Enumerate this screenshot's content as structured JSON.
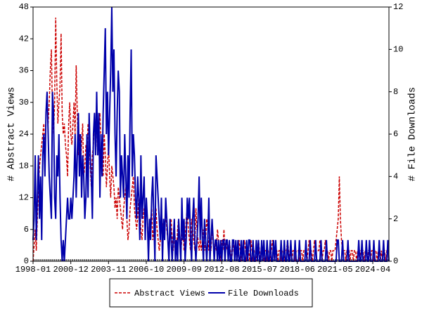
{
  "chart_data": {
    "type": "line",
    "y_label": "# Abstract Views",
    "y2_label": "# File Downloads",
    "categories": [
      "1998-01",
      "1998-02",
      "1998-03",
      "1998-04",
      "1998-05",
      "1998-06",
      "1998-07",
      "1998-08",
      "1998-09",
      "1998-10",
      "1998-11",
      "1998-12",
      "1999-01",
      "1999-02",
      "1999-03",
      "1999-04",
      "1999-05",
      "1999-06",
      "1999-07",
      "1999-08",
      "1999-09",
      "1999-10",
      "1999-11",
      "1999-12",
      "2000-01",
      "2000-02",
      "2000-03",
      "2000-04",
      "2000-05",
      "2000-06",
      "2000-07",
      "2000-08",
      "2000-09",
      "2000-10",
      "2000-11",
      "2000-12",
      "2001-01",
      "2001-02",
      "2001-03",
      "2001-04",
      "2001-05",
      "2001-06",
      "2001-07",
      "2001-08",
      "2001-09",
      "2001-10",
      "2001-11",
      "2001-12",
      "2002-01",
      "2002-02",
      "2002-03",
      "2002-04",
      "2002-05",
      "2002-06",
      "2002-07",
      "2002-08",
      "2002-09",
      "2002-10",
      "2002-11",
      "2002-12",
      "2003-01",
      "2003-02",
      "2003-03",
      "2003-04",
      "2003-05",
      "2003-06",
      "2003-07",
      "2003-08",
      "2003-09",
      "2003-10",
      "2003-11",
      "2003-12",
      "2004-01",
      "2004-02",
      "2004-03",
      "2004-04",
      "2004-05",
      "2004-06",
      "2004-07",
      "2004-08",
      "2004-09",
      "2004-10",
      "2004-11",
      "2004-12",
      "2005-01",
      "2005-02",
      "2005-03",
      "2005-04",
      "2005-05",
      "2005-06",
      "2005-07",
      "2005-08",
      "2005-09",
      "2005-10",
      "2005-11",
      "2005-12",
      "2006-01",
      "2006-02",
      "2006-03",
      "2006-04",
      "2006-05",
      "2006-06",
      "2006-07",
      "2006-08",
      "2006-09",
      "2006-10",
      "2006-11",
      "2006-12",
      "2007-01",
      "2007-02",
      "2007-03",
      "2007-04",
      "2007-05",
      "2007-06",
      "2007-07",
      "2007-08",
      "2007-09",
      "2007-10",
      "2007-11",
      "2007-12",
      "2008-01",
      "2008-02",
      "2008-03",
      "2008-04",
      "2008-05",
      "2008-06",
      "2008-07",
      "2008-08",
      "2008-09",
      "2008-10",
      "2008-11",
      "2008-12",
      "2009-01",
      "2009-02",
      "2009-03",
      "2009-04",
      "2009-05",
      "2009-06",
      "2009-07",
      "2009-08",
      "2009-09",
      "2009-10",
      "2009-11",
      "2009-12",
      "2010-01",
      "2010-02",
      "2010-03",
      "2010-04",
      "2010-05",
      "2010-06",
      "2010-07",
      "2010-08",
      "2010-09",
      "2010-10",
      "2010-11",
      "2010-12",
      "2011-01",
      "2011-02",
      "2011-03",
      "2011-04",
      "2011-05",
      "2011-06",
      "2011-07",
      "2011-08",
      "2011-09",
      "2011-10",
      "2011-11",
      "2011-12",
      "2012-01",
      "2012-02",
      "2012-03",
      "2012-04",
      "2012-05",
      "2012-06",
      "2012-07",
      "2012-08",
      "2012-09",
      "2012-10",
      "2012-11",
      "2012-12",
      "2013-01",
      "2013-02",
      "2013-03",
      "2013-04",
      "2013-05",
      "2013-06",
      "2013-07",
      "2013-08",
      "2013-09",
      "2013-10",
      "2013-11",
      "2013-12",
      "2014-01",
      "2014-02",
      "2014-03",
      "2014-04",
      "2014-05",
      "2014-06",
      "2014-07",
      "2014-08",
      "2014-09",
      "2014-10",
      "2014-11",
      "2014-12",
      "2015-01",
      "2015-02",
      "2015-03",
      "2015-04",
      "2015-05",
      "2015-06",
      "2015-07",
      "2015-08",
      "2015-09",
      "2015-10",
      "2015-11",
      "2015-12",
      "2016-01",
      "2016-02",
      "2016-03",
      "2016-04",
      "2016-05",
      "2016-06",
      "2016-07",
      "2016-08",
      "2016-09",
      "2016-10",
      "2016-11",
      "2016-12",
      "2017-01",
      "2017-02",
      "2017-03",
      "2017-04",
      "2017-05",
      "2017-06",
      "2017-07",
      "2017-08",
      "2017-09",
      "2017-10",
      "2017-11",
      "2017-12",
      "2018-01",
      "2018-02",
      "2018-03",
      "2018-04",
      "2018-05",
      "2018-06",
      "2018-07",
      "2018-08",
      "2018-09",
      "2018-10",
      "2018-11",
      "2018-12",
      "2019-01",
      "2019-02",
      "2019-03",
      "2019-04",
      "2019-05",
      "2019-06",
      "2019-07",
      "2019-08",
      "2019-09",
      "2019-10",
      "2019-11",
      "2019-12",
      "2020-01",
      "2020-02",
      "2020-03",
      "2020-04",
      "2020-05",
      "2020-06",
      "2020-07",
      "2020-08",
      "2020-09",
      "2020-10",
      "2020-11",
      "2020-12",
      "2021-01",
      "2021-02",
      "2021-03",
      "2021-04",
      "2021-05",
      "2021-06",
      "2021-07",
      "2021-08",
      "2021-09",
      "2021-10",
      "2021-11",
      "2021-12",
      "2022-01",
      "2022-02",
      "2022-03",
      "2022-04",
      "2022-05",
      "2022-06",
      "2022-07",
      "2022-08",
      "2022-09",
      "2022-10",
      "2022-11",
      "2022-12",
      "2023-01",
      "2023-02",
      "2023-03",
      "2023-04",
      "2023-05",
      "2023-06",
      "2023-07",
      "2023-08",
      "2023-09",
      "2023-10",
      "2023-11",
      "2023-12",
      "2024-01",
      "2024-02",
      "2024-03",
      "2024-04",
      "2024-05",
      "2024-06",
      "2024-07",
      "2024-08",
      "2024-09",
      "2024-10",
      "2024-11",
      "2024-12",
      "2025-01",
      "2025-02",
      "2025-03",
      "2025-04",
      "2025-05",
      "2025-06",
      "2025-07"
    ],
    "xticks": [
      "1998-01",
      "2000-12",
      "2003-11",
      "2006-10",
      "2009-09",
      "2012-08",
      "2015-07",
      "2018-06",
      "2021-05",
      "2024-04"
    ],
    "ylim": [
      0,
      48
    ],
    "yticks": [
      0,
      6,
      12,
      18,
      24,
      30,
      36,
      42,
      48
    ],
    "y2lim": [
      0,
      12
    ],
    "y2ticks": [
      0,
      2,
      4,
      6,
      8,
      10,
      12
    ],
    "series": [
      {
        "name": "Abstract Views",
        "color": "#cc0000",
        "dashed": true,
        "values": [
          0,
          3,
          6,
          2,
          8,
          14,
          18,
          20,
          22,
          24,
          26,
          20,
          28,
          32,
          26,
          30,
          36,
          40,
          28,
          24,
          30,
          46,
          34,
          26,
          30,
          33,
          43,
          28,
          24,
          26,
          22,
          20,
          16,
          26,
          30,
          24,
          22,
          26,
          30,
          24,
          37,
          28,
          20,
          24,
          18,
          22,
          26,
          16,
          18,
          22,
          20,
          26,
          24,
          18,
          14,
          20,
          22,
          28,
          24,
          26,
          20,
          24,
          28,
          22,
          18,
          16,
          24,
          20,
          14,
          18,
          22,
          16,
          12,
          18,
          16,
          14,
          10,
          12,
          8,
          14,
          12,
          10,
          8,
          6,
          10,
          12,
          14,
          8,
          4,
          6,
          10,
          12,
          14,
          16,
          10,
          8,
          6,
          8,
          12,
          10,
          6,
          4,
          8,
          10,
          6,
          12,
          8,
          4,
          6,
          8,
          10,
          4,
          6,
          8,
          10,
          6,
          4,
          2,
          4,
          8,
          6,
          8,
          4,
          10,
          6,
          4,
          2,
          6,
          8,
          4,
          2,
          6,
          4,
          2,
          6,
          8,
          4,
          2,
          4,
          6,
          2,
          4,
          8,
          10,
          6,
          4,
          2,
          8,
          6,
          4,
          2,
          10,
          6,
          4,
          2,
          4,
          2,
          4,
          6,
          2,
          4,
          8,
          6,
          2,
          4,
          2,
          6,
          4,
          2,
          4,
          2,
          6,
          4,
          2,
          0,
          4,
          2,
          6,
          2,
          4,
          2,
          2,
          4,
          2,
          0,
          2,
          4,
          2,
          2,
          0,
          2,
          4,
          2,
          0,
          2,
          2,
          4,
          2,
          0,
          2,
          2,
          0,
          4,
          2,
          0,
          2,
          2,
          0,
          2,
          4,
          2,
          0,
          2,
          2,
          0,
          2,
          2,
          0,
          2,
          2,
          0,
          2,
          4,
          2,
          0,
          2,
          2,
          0,
          2,
          2,
          0,
          2,
          2,
          0,
          2,
          2,
          4,
          2,
          0,
          2,
          0,
          2,
          2,
          0,
          2,
          2,
          2,
          0,
          2,
          2,
          0,
          2,
          2,
          2,
          0,
          2,
          4,
          2,
          2,
          0,
          2,
          4,
          2,
          2,
          2,
          2,
          4,
          2,
          0,
          2,
          2,
          4,
          2,
          2,
          0,
          2,
          2,
          0,
          2,
          2,
          2,
          4,
          6,
          8,
          16,
          8,
          4,
          2,
          2,
          2,
          0,
          2,
          2,
          2,
          0,
          2,
          2,
          0,
          2,
          2,
          0,
          2,
          2,
          0,
          2,
          2,
          2,
          0,
          2,
          2,
          0,
          2,
          2,
          0,
          2,
          2,
          0,
          2,
          2,
          0,
          2,
          2,
          0,
          2,
          0,
          2,
          2,
          0,
          2,
          2,
          0
        ]
      },
      {
        "name": "File Downloads",
        "color": "#0000aa",
        "axis": "y2",
        "values": [
          1,
          2,
          5,
          1,
          3,
          5,
          2,
          4,
          1,
          5,
          6,
          4,
          7,
          8,
          6,
          4,
          3,
          2,
          8,
          7,
          3,
          2,
          5,
          4,
          6,
          3,
          1,
          0,
          1,
          0,
          1,
          2,
          3,
          2,
          2,
          3,
          2,
          3,
          4,
          6,
          3,
          5,
          7,
          4,
          6,
          3,
          5,
          4,
          2,
          3,
          6,
          3,
          7,
          5,
          4,
          2,
          6,
          7,
          5,
          8,
          5,
          7,
          3,
          6,
          4,
          7,
          9,
          11,
          6,
          8,
          5,
          7,
          9,
          12,
          8,
          10,
          6,
          4,
          7,
          9,
          8,
          3,
          5,
          4,
          3,
          6,
          4,
          2,
          5,
          3,
          7,
          10,
          4,
          6,
          5,
          3,
          2,
          4,
          3,
          1,
          5,
          2,
          3,
          4,
          1,
          3,
          2,
          0,
          2,
          1,
          3,
          4,
          2,
          0,
          5,
          4,
          3,
          2,
          1,
          3,
          0,
          2,
          1,
          3,
          2,
          1,
          0,
          2,
          1,
          0,
          1,
          2,
          0,
          1,
          0,
          2,
          1,
          0,
          3,
          1,
          2,
          0,
          1,
          3,
          2,
          3,
          1,
          0,
          2,
          3,
          1,
          0,
          1,
          2,
          4,
          1,
          3,
          1,
          0,
          2,
          1,
          0,
          1,
          3,
          0,
          1,
          2,
          1,
          0,
          1,
          1,
          0,
          1,
          0,
          1,
          0,
          1,
          1,
          0,
          1,
          1,
          0,
          1,
          0,
          0,
          1,
          1,
          0,
          1,
          0,
          1,
          0,
          0,
          1,
          0,
          1,
          0,
          0,
          1,
          0,
          1,
          1,
          0,
          0,
          1,
          0,
          0,
          1,
          0,
          1,
          0,
          0,
          1,
          0,
          1,
          0,
          0,
          1,
          0,
          0,
          1,
          0,
          0,
          1,
          0,
          1,
          0,
          0,
          0,
          0,
          1,
          0,
          0,
          1,
          0,
          0,
          1,
          0,
          0,
          1,
          0,
          0,
          0,
          1,
          0,
          0,
          0,
          1,
          0,
          0,
          0,
          0,
          0,
          1,
          0,
          0,
          0,
          1,
          0,
          0,
          0,
          0,
          1,
          0,
          0,
          0,
          0,
          1,
          0,
          0,
          0,
          0,
          1,
          0,
          0,
          0,
          0,
          0,
          0,
          0,
          0,
          0,
          1,
          1,
          0,
          0,
          0,
          1,
          0,
          0,
          0,
          0,
          1,
          0,
          0,
          0,
          0,
          0,
          0,
          0,
          0,
          0,
          1,
          0,
          0,
          1,
          0,
          0,
          0,
          1,
          0,
          0,
          1,
          0,
          0,
          0,
          1,
          0,
          0,
          0,
          0,
          1,
          0,
          0,
          0,
          1,
          0,
          0,
          0,
          1,
          0
        ]
      }
    ]
  }
}
